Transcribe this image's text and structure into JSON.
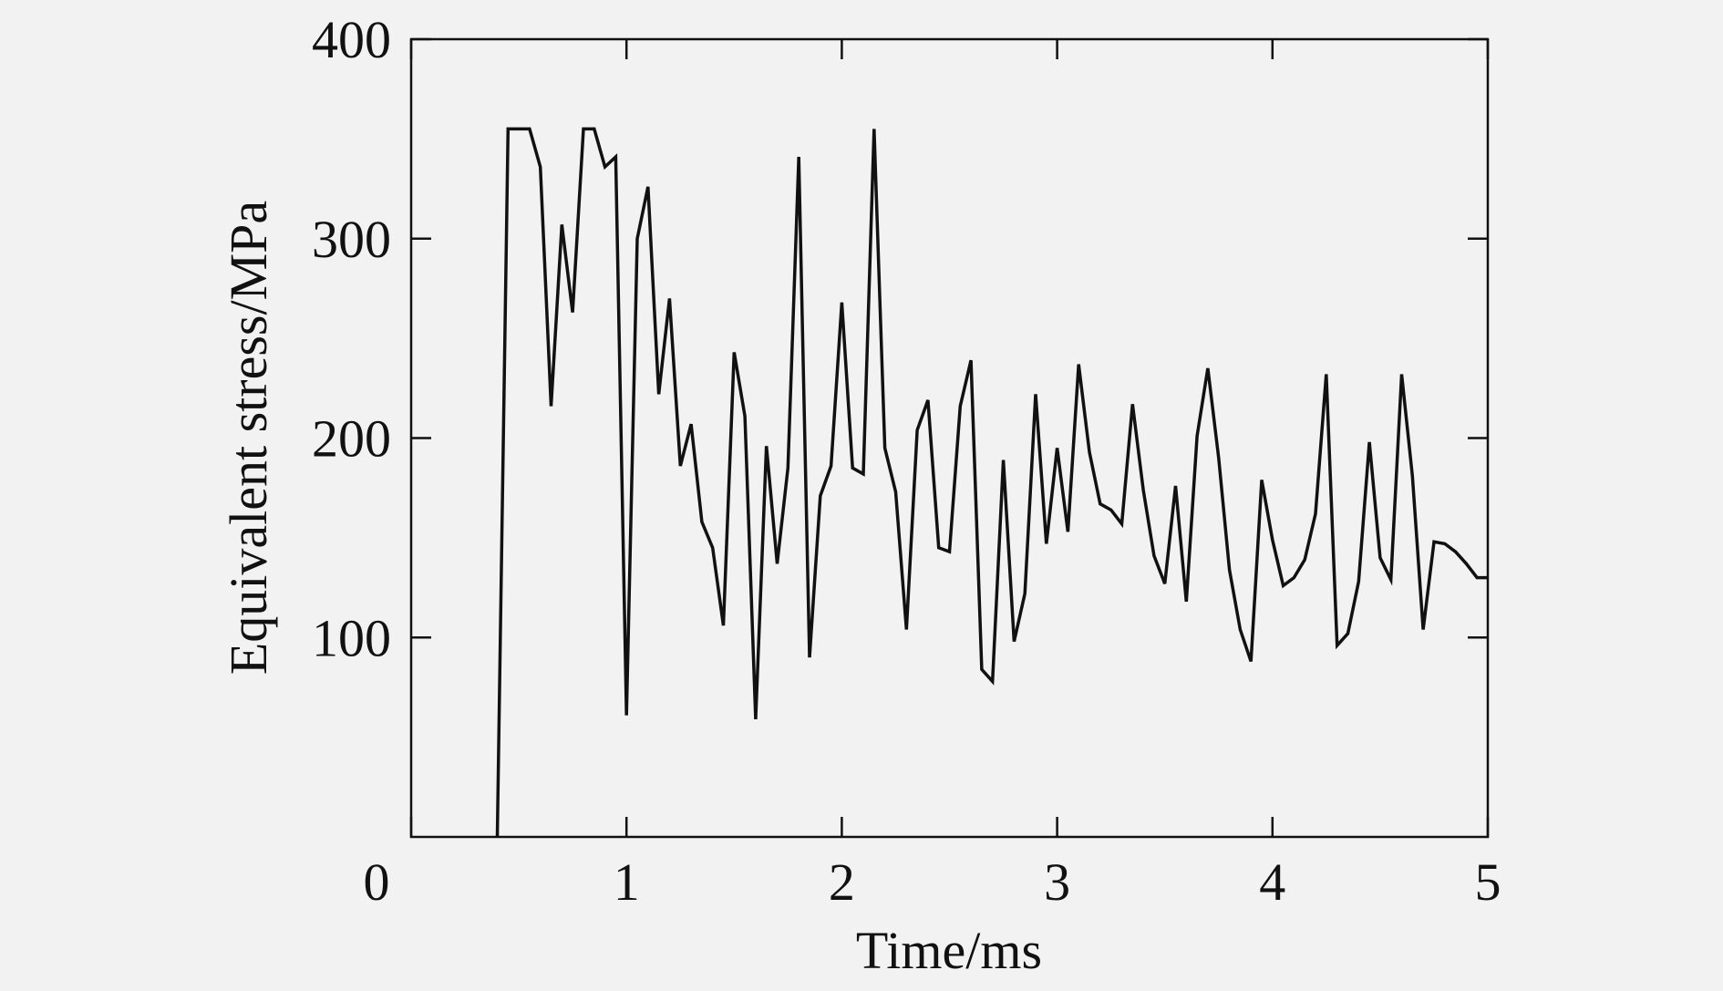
{
  "chart_data": {
    "type": "line",
    "xlabel": "Time/ms",
    "ylabel": "Equivalent stress/MPa",
    "xlim": [
      0,
      5
    ],
    "ylim": [
      0,
      400
    ],
    "x_ticks": [
      "0",
      "1",
      "2",
      "3",
      "4",
      "5"
    ],
    "y_ticks": [
      "100",
      "200",
      "300",
      "400"
    ],
    "grid": false,
    "series": [
      {
        "color": "#111111",
        "points": [
          [
            0.4,
            0
          ],
          [
            0.45,
            355
          ],
          [
            0.5,
            355
          ],
          [
            0.55,
            355
          ],
          [
            0.6,
            336
          ],
          [
            0.65,
            216
          ],
          [
            0.7,
            307
          ],
          [
            0.75,
            263
          ],
          [
            0.8,
            355
          ],
          [
            0.85,
            355
          ],
          [
            0.9,
            336
          ],
          [
            0.95,
            341
          ],
          [
            1.0,
            61
          ],
          [
            1.05,
            300
          ],
          [
            1.1,
            326
          ],
          [
            1.15,
            222
          ],
          [
            1.2,
            270
          ],
          [
            1.25,
            186
          ],
          [
            1.3,
            207
          ],
          [
            1.35,
            158
          ],
          [
            1.4,
            145
          ],
          [
            1.45,
            106
          ],
          [
            1.5,
            243
          ],
          [
            1.55,
            211
          ],
          [
            1.6,
            59
          ],
          [
            1.65,
            196
          ],
          [
            1.7,
            137
          ],
          [
            1.75,
            185
          ],
          [
            1.8,
            341
          ],
          [
            1.85,
            90
          ],
          [
            1.9,
            171
          ],
          [
            1.95,
            186
          ],
          [
            2.0,
            268
          ],
          [
            2.05,
            185
          ],
          [
            2.1,
            182
          ],
          [
            2.15,
            355
          ],
          [
            2.2,
            195
          ],
          [
            2.25,
            173
          ],
          [
            2.3,
            104
          ],
          [
            2.35,
            204
          ],
          [
            2.4,
            219
          ],
          [
            2.45,
            145
          ],
          [
            2.5,
            143
          ],
          [
            2.55,
            216
          ],
          [
            2.6,
            239
          ],
          [
            2.65,
            84
          ],
          [
            2.7,
            78
          ],
          [
            2.75,
            189
          ],
          [
            2.8,
            98
          ],
          [
            2.85,
            122
          ],
          [
            2.9,
            222
          ],
          [
            2.95,
            147
          ],
          [
            3.0,
            195
          ],
          [
            3.05,
            153
          ],
          [
            3.1,
            237
          ],
          [
            3.15,
            193
          ],
          [
            3.2,
            167
          ],
          [
            3.25,
            164
          ],
          [
            3.3,
            157
          ],
          [
            3.35,
            217
          ],
          [
            3.4,
            174
          ],
          [
            3.45,
            141
          ],
          [
            3.5,
            127
          ],
          [
            3.55,
            176
          ],
          [
            3.6,
            118
          ],
          [
            3.65,
            201
          ],
          [
            3.7,
            235
          ],
          [
            3.75,
            190
          ],
          [
            3.8,
            134
          ],
          [
            3.85,
            104
          ],
          [
            3.9,
            88
          ],
          [
            3.95,
            179
          ],
          [
            4.0,
            149
          ],
          [
            4.05,
            126
          ],
          [
            4.1,
            130
          ],
          [
            4.15,
            139
          ],
          [
            4.2,
            162
          ],
          [
            4.25,
            232
          ],
          [
            4.3,
            96
          ],
          [
            4.35,
            102
          ],
          [
            4.4,
            128
          ],
          [
            4.45,
            198
          ],
          [
            4.5,
            140
          ],
          [
            4.55,
            129
          ],
          [
            4.6,
            232
          ],
          [
            4.65,
            181
          ],
          [
            4.7,
            104
          ],
          [
            4.75,
            148
          ],
          [
            4.8,
            147
          ],
          [
            4.85,
            143
          ],
          [
            4.9,
            137
          ],
          [
            4.95,
            130
          ],
          [
            5.0,
            130
          ]
        ]
      }
    ]
  }
}
